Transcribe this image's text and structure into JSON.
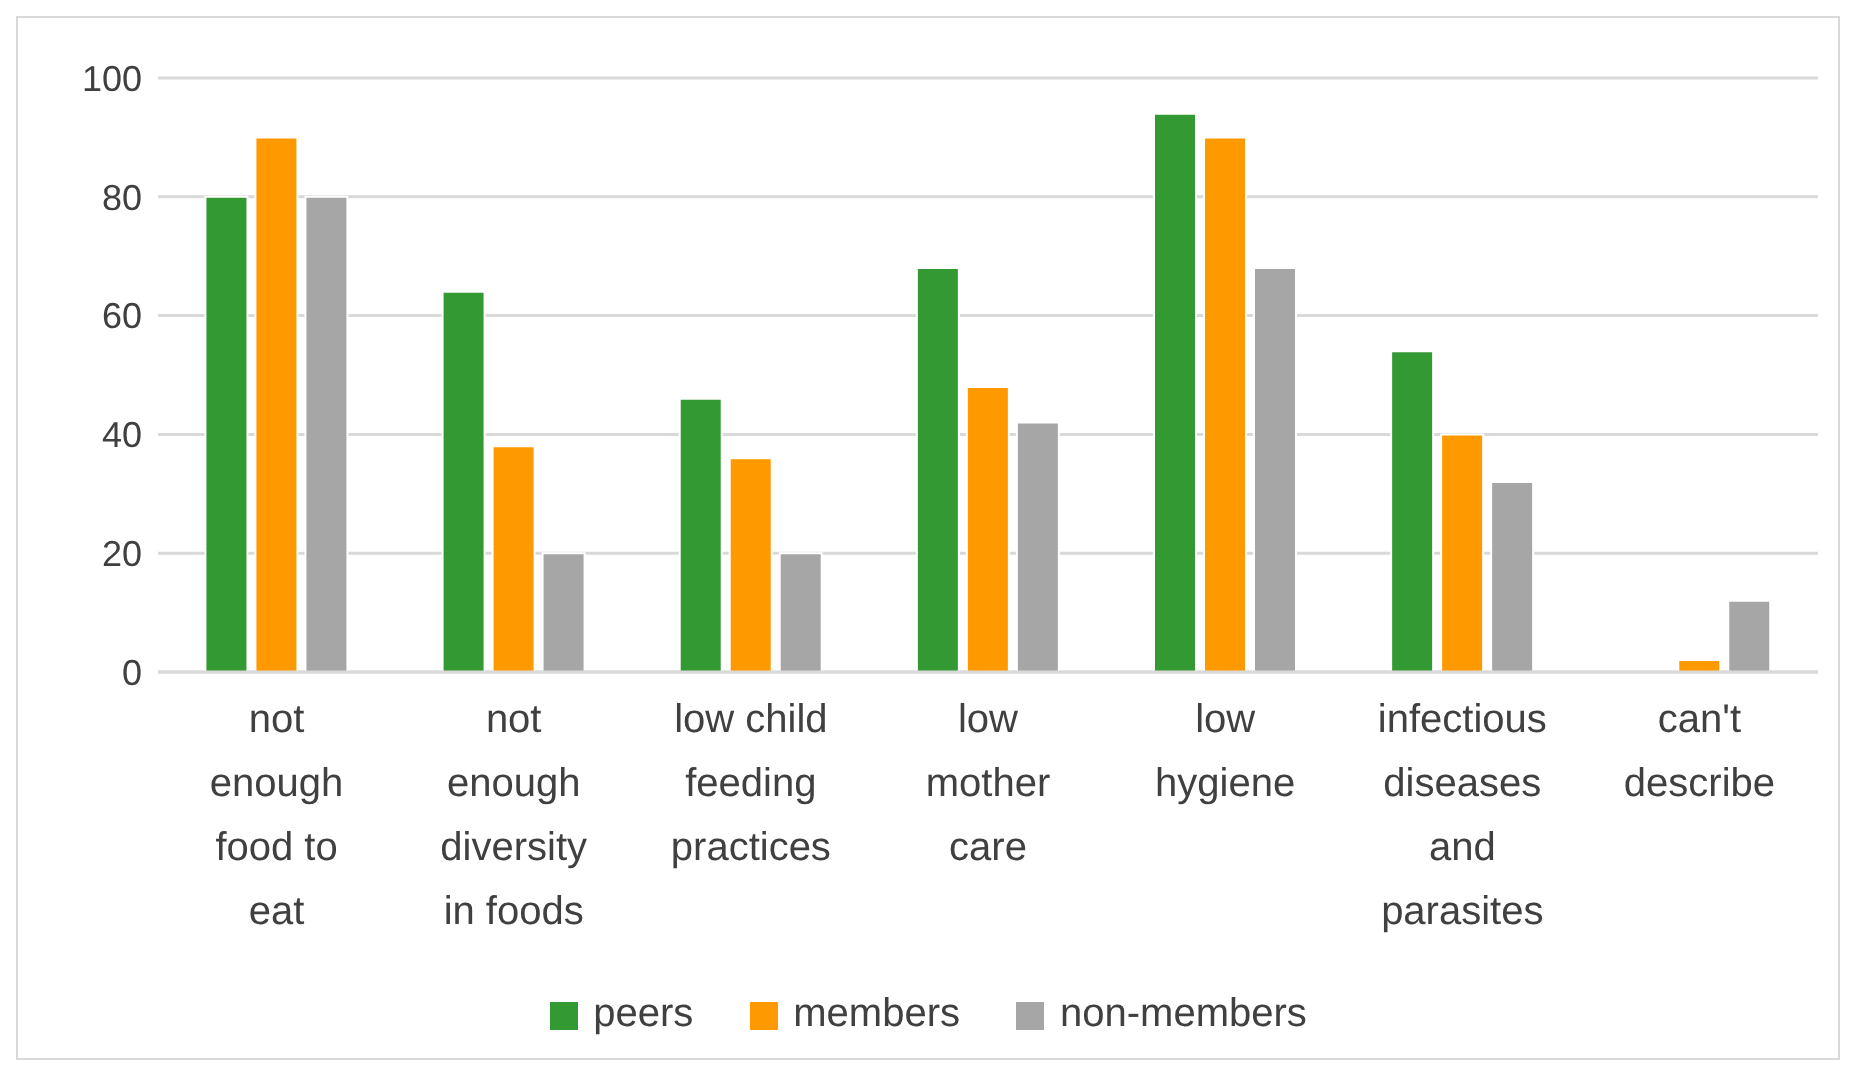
{
  "chart_data": {
    "type": "bar",
    "categories": [
      "not enough food to eat",
      "not enough diversity in foods",
      "low child feeding practices",
      "low mother care",
      "low hygiene",
      "infectious diseases and parasites",
      "can't describe"
    ],
    "series": [
      {
        "name": "peers",
        "color": "#339933",
        "values": [
          80,
          64,
          46,
          68,
          94,
          54,
          0
        ]
      },
      {
        "name": "members",
        "color": "#ff9900",
        "values": [
          90,
          38,
          36,
          48,
          90,
          40,
          2
        ]
      },
      {
        "name": "non-members",
        "color": "#a6a6a6",
        "values": [
          80,
          20,
          20,
          42,
          68,
          32,
          12
        ]
      }
    ],
    "ylim": [
      0,
      100
    ],
    "yticks": [
      0,
      20,
      40,
      60,
      80,
      100
    ],
    "grid": "y",
    "legend": "bottom"
  }
}
